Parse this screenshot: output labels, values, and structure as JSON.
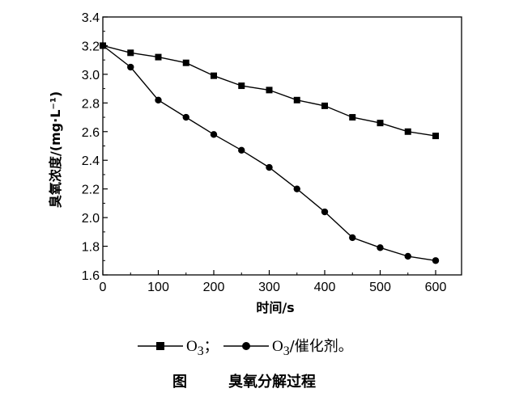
{
  "chart_data": {
    "type": "line",
    "xlabel": "时间/s",
    "ylabel": "臭氧浓度/(mg·L⁻¹)",
    "xlim": [
      0,
      650
    ],
    "ylim": [
      1.6,
      3.4
    ],
    "xticks": [
      0,
      100,
      200,
      300,
      400,
      500,
      600
    ],
    "xtick_labels": [
      "0",
      "100",
      "200",
      "300",
      "400",
      "500",
      "600"
    ],
    "yticks": [
      1.6,
      1.8,
      2.0,
      2.2,
      2.4,
      2.6,
      2.8,
      3.0,
      3.2,
      3.4
    ],
    "ytick_labels": [
      "1.6",
      "1.8",
      "2.0",
      "2.2",
      "2.4",
      "2.6",
      "2.8",
      "3.0",
      "3.2",
      "3.4"
    ],
    "grid": false,
    "legend_position": "bottom",
    "series": [
      {
        "marker": "square",
        "x": [
          0,
          50,
          100,
          150,
          200,
          250,
          300,
          350,
          400,
          450,
          500,
          550,
          600
        ],
        "y": [
          3.2,
          3.15,
          3.12,
          3.08,
          2.99,
          2.92,
          2.89,
          2.82,
          2.78,
          2.7,
          2.66,
          2.6,
          2.57
        ]
      },
      {
        "marker": "circle",
        "x": [
          0,
          50,
          100,
          150,
          200,
          250,
          300,
          350,
          400,
          450,
          500,
          550,
          600
        ],
        "y": [
          3.2,
          3.05,
          2.82,
          2.7,
          2.58,
          2.47,
          2.35,
          2.2,
          2.04,
          1.86,
          1.79,
          1.73,
          1.7
        ]
      }
    ]
  },
  "legend": {
    "items": [
      {
        "main": "O",
        "sub": "3",
        "suffix": "；"
      },
      {
        "main": "O",
        "sub": "3",
        "suffix": "/催化剂。"
      }
    ]
  },
  "caption": {
    "label": "图",
    "title": "臭氧分解过程"
  }
}
